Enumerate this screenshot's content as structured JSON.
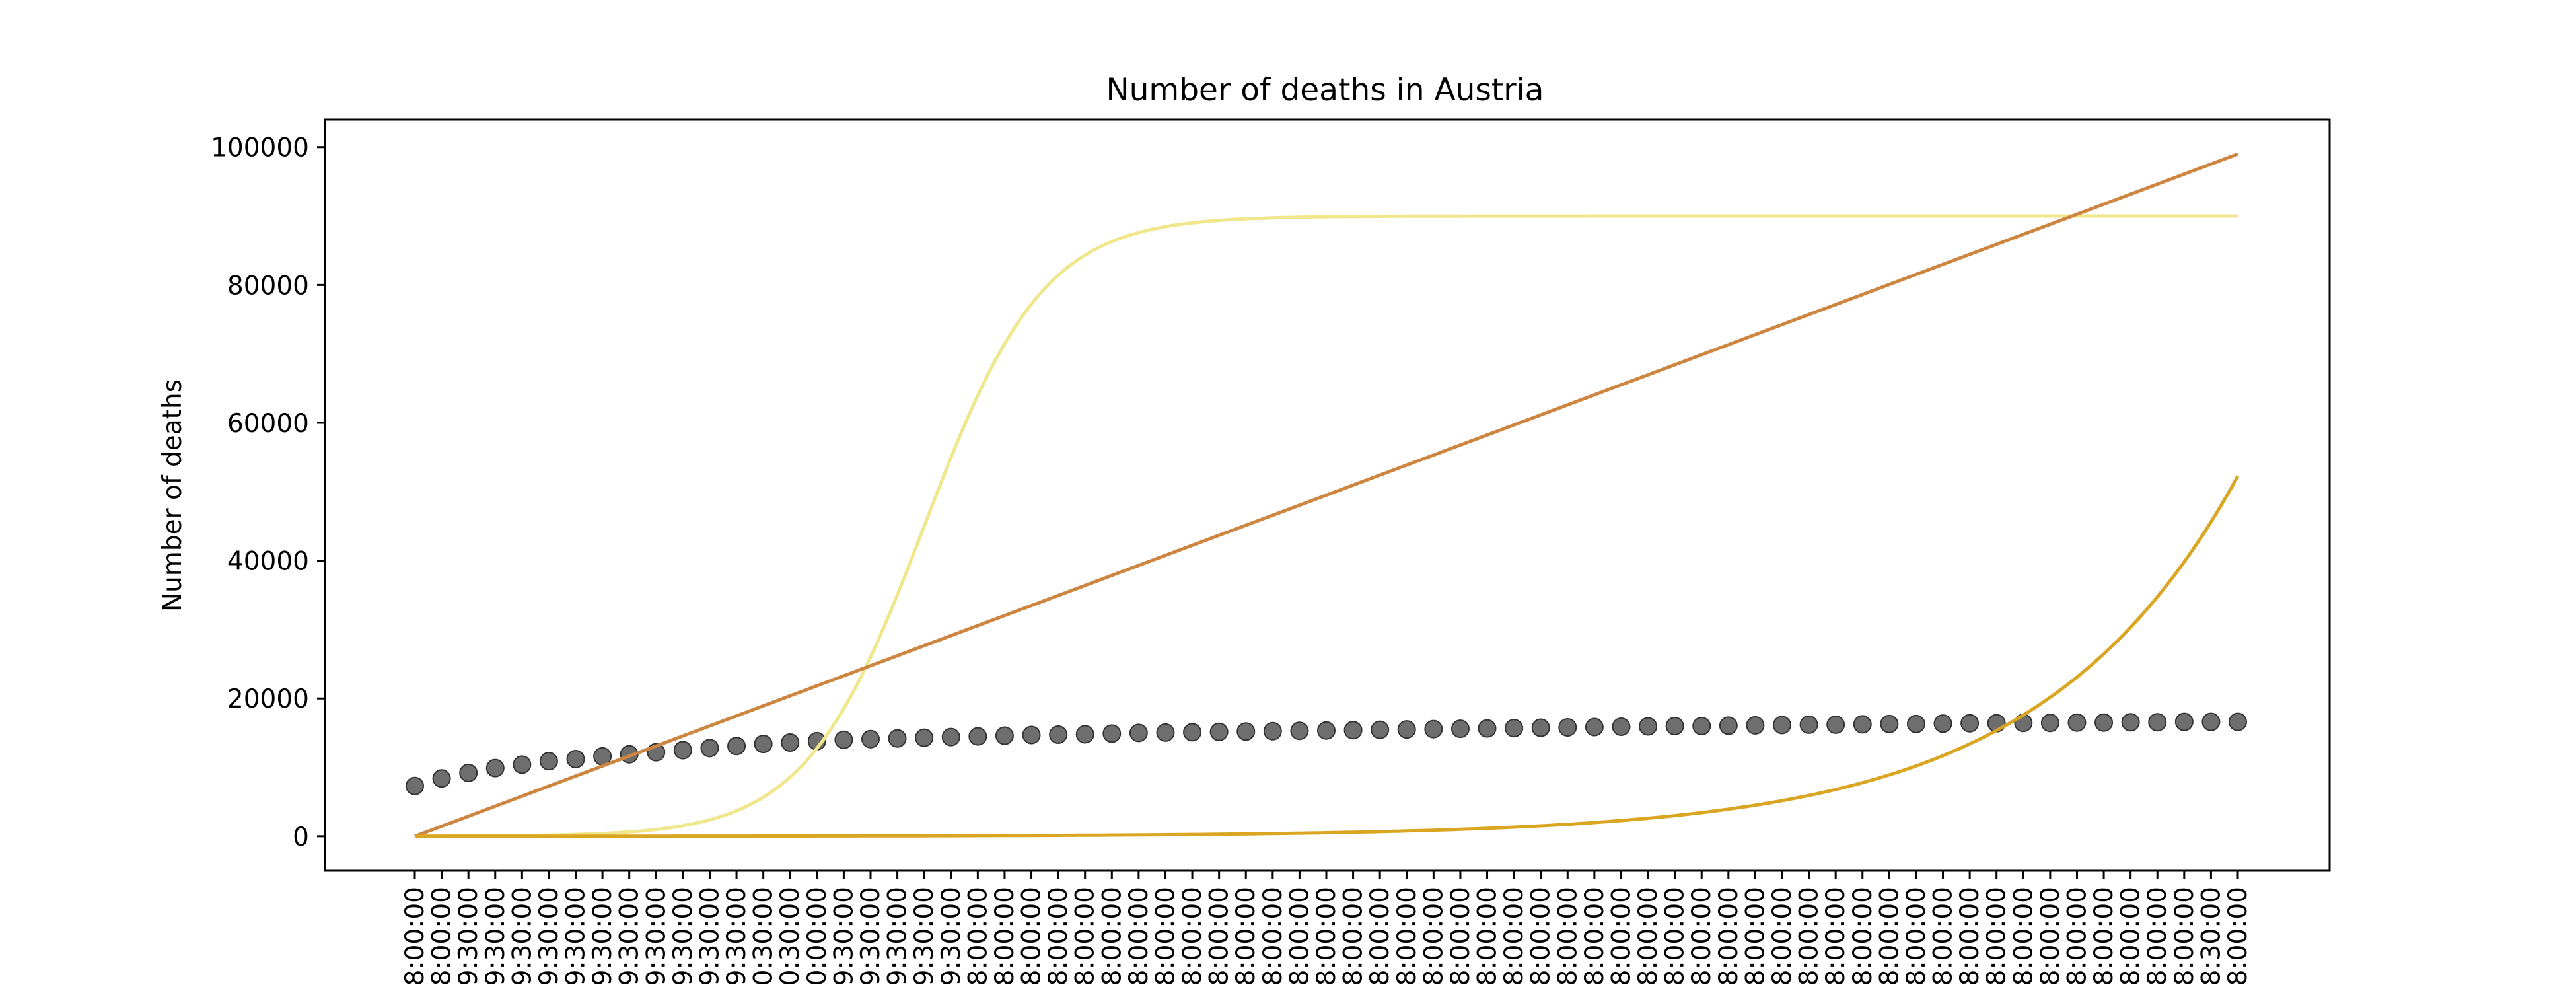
{
  "chart_data": {
    "type": "line",
    "title": "Number of deaths in Austria",
    "xlabel": "",
    "ylabel": "Number of deaths",
    "ylim": [
      -5000,
      104000
    ],
    "yticks": [
      0,
      20000,
      40000,
      60000,
      80000,
      100000
    ],
    "ytick_labels": [
      "0",
      "20000",
      "40000",
      "60000",
      "80000",
      "100000"
    ],
    "x_tick_labels": [
      "8:00:00",
      "8:00:00",
      "9:30:00",
      "9:30:00",
      "9:30:00",
      "9:30:00",
      "9:30:00",
      "9:30:00",
      "9:30:00",
      "9:30:00",
      "9:30:00",
      "9:30:00",
      "9:30:00",
      "0:30:00",
      "0:30:00",
      "0:00:00",
      "9:30:00",
      "9:30:00",
      "9:30:00",
      "9:30:00",
      "9:30:00",
      "8:00:00",
      "8:00:00",
      "8:00:00",
      "8:00:00",
      "8:00:00",
      "8:00:00",
      "8:00:00",
      "8:00:00",
      "8:00:00",
      "8:00:00",
      "8:00:00",
      "8:00:00",
      "8:00:00",
      "8:00:00",
      "8:00:00",
      "8:00:00",
      "8:00:00",
      "8:00:00",
      "8:00:00",
      "8:00:00",
      "8:00:00",
      "8:00:00",
      "8:00:00",
      "8:00:00",
      "8:00:00",
      "8:00:00",
      "8:00:00",
      "8:00:00",
      "8:00:00",
      "8:00:00",
      "8:00:00",
      "8:00:00",
      "8:00:00",
      "8:00:00",
      "8:00:00",
      "8:00:00",
      "8:00:00",
      "8:00:00",
      "8:00:00",
      "8:00:00",
      "8:00:00",
      "8:00:00",
      "8:00:00",
      "8:00:00",
      "8:00:00",
      "8:00:00",
      "8:30:00",
      "8:00:00"
    ],
    "series": [
      {
        "kind": "scatter",
        "color": "#555555",
        "values": [
          7300,
          8400,
          9200,
          9900,
          10400,
          10900,
          11200,
          11600,
          11900,
          12200,
          12500,
          12800,
          13100,
          13400,
          13600,
          13800,
          14000,
          14100,
          14200,
          14300,
          14400,
          14500,
          14600,
          14700,
          14750,
          14800,
          14900,
          15000,
          15050,
          15100,
          15150,
          15200,
          15250,
          15300,
          15350,
          15400,
          15450,
          15500,
          15550,
          15600,
          15650,
          15700,
          15750,
          15800,
          15850,
          15900,
          15950,
          16000,
          16000,
          16050,
          16100,
          16150,
          16200,
          16200,
          16250,
          16300,
          16300,
          16350,
          16400,
          16400,
          16450,
          16450,
          16500,
          16500,
          16550,
          16550,
          16600,
          16600,
          16600
        ]
      },
      {
        "kind": "line",
        "color": "#f0e68c",
        "model": "logistic",
        "L": 90000,
        "k": 0.45,
        "x0": 19
      },
      {
        "kind": "line",
        "color": "#cd853f",
        "model": "linear",
        "start": 0,
        "end": 99000
      },
      {
        "kind": "line",
        "color": "#daa520",
        "model": "exponential",
        "a": 5,
        "b": 0.1361
      }
    ]
  }
}
